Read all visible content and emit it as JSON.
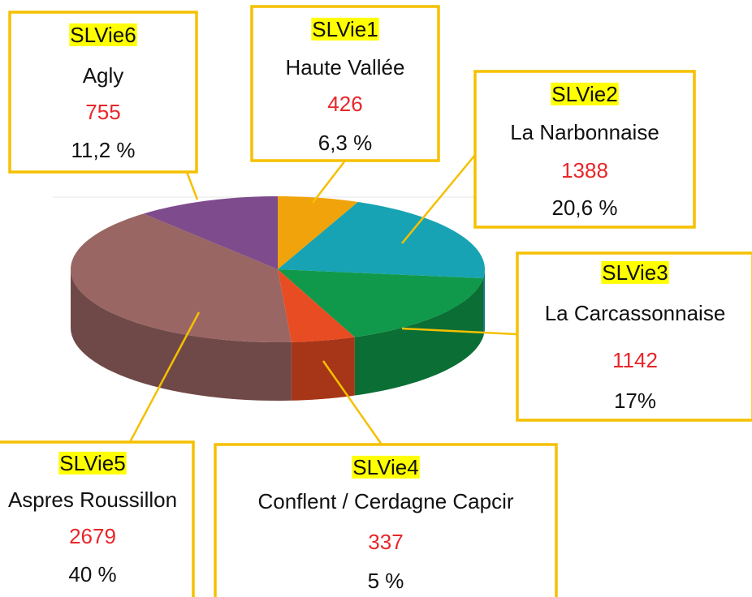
{
  "chart_data": {
    "type": "pie3d",
    "categories": [
      "SLVie1",
      "SLVie2",
      "SLVie3",
      "SLVie4",
      "SLVie5",
      "SLVie6"
    ],
    "region_names": [
      "Haute Vallée",
      "La Narbonnaise",
      "La Carcassonnaise",
      "Conflent / Cerdagne Capcir",
      "Aspres Roussillon",
      "Agly"
    ],
    "values": [
      426,
      1388,
      1142,
      337,
      2679,
      755
    ],
    "percent_labels": [
      "6,3 %",
      "20,6 %",
      "17%",
      "5 %",
      "40 %",
      "11,2 %"
    ],
    "colors": [
      "#f0a30a",
      "#17a3b3",
      "#10994a",
      "#e84c22",
      "#9a6663",
      "#7e4c8c"
    ]
  }
}
